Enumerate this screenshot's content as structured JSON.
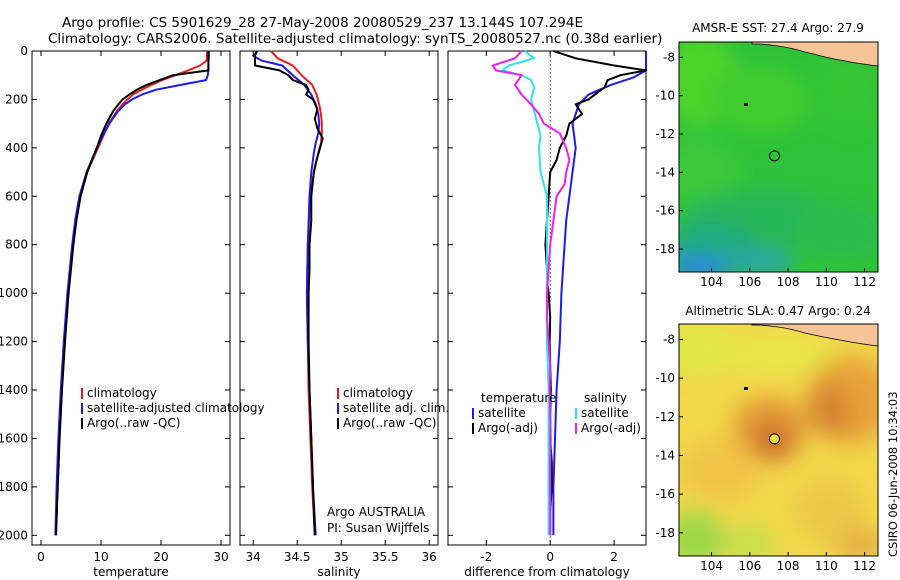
{
  "header": {
    "line1": "Argo profile: CS 5901629_28 27-May-2008 20080529_237 13.144S 107.294E",
    "line2": "Climatology: CARS2006. Satellite-adjusted climatology: synTS_20080527.nc (0.38d earlier)"
  },
  "side_label": "CSIRO 06-Jun-2008 10:34:03",
  "colors": {
    "climatology": "#ee1c1c",
    "satellite": "#1c1cee",
    "argo": "#000000",
    "temp_diff_argo": "#30e0f0",
    "sal_diff_argo": "#ee20ee",
    "land": "#f6c497"
  },
  "chart_data": [
    {
      "type": "line",
      "id": "temperature",
      "xlabel": "temperature",
      "ylabel": "",
      "xlim": [
        -1.5,
        31.5
      ],
      "ylim": [
        2040,
        0
      ],
      "xticks": [
        0,
        10,
        20,
        30
      ],
      "yticks": [
        0,
        200,
        400,
        600,
        800,
        1000,
        1200,
        1400,
        1600,
        1800,
        2000
      ],
      "legend": [
        "climatology",
        "satellite-adjusted climatology",
        "Argo(..raw -QC)"
      ],
      "legend_placement": "lower-center",
      "series": [
        {
          "name": "climatology",
          "color": "#ee1c1c",
          "depth": [
            0,
            40,
            60,
            80,
            100,
            120,
            140,
            160,
            180,
            200,
            220,
            250,
            300,
            350,
            400,
            500,
            600,
            700,
            800,
            1000,
            1200,
            1400,
            1600,
            1800,
            2000
          ],
          "values": [
            27.7,
            27.6,
            26.5,
            24.5,
            22.4,
            20.2,
            18.4,
            16.8,
            15.3,
            14.4,
            13.6,
            12.6,
            11.3,
            10.4,
            9.5,
            7.7,
            6.5,
            5.8,
            5.3,
            4.5,
            3.9,
            3.4,
            3.0,
            2.7,
            2.5
          ]
        },
        {
          "name": "satellite-adjusted climatology",
          "color": "#1c1cee",
          "depth": [
            0,
            60,
            80,
            100,
            120,
            140,
            160,
            180,
            200,
            220,
            250,
            300,
            350,
            400,
            500,
            600,
            700,
            800,
            1000,
            1200,
            1400,
            1600,
            1800,
            2000
          ],
          "values": [
            28.0,
            27.9,
            27.9,
            27.8,
            27.5,
            23.3,
            19.2,
            16.8,
            15.2,
            14.0,
            12.8,
            11.4,
            10.3,
            9.3,
            7.6,
            6.4,
            5.7,
            5.2,
            4.4,
            3.8,
            3.3,
            2.9,
            2.6,
            2.4
          ]
        },
        {
          "name": "Argo(..raw -QC)",
          "color": "#000000",
          "depth": [
            0,
            80,
            90,
            100,
            120,
            140,
            160,
            180,
            200,
            220,
            250,
            300,
            350,
            400,
            500,
            600,
            700,
            800,
            1000,
            1200,
            1400,
            1600,
            1800,
            2000
          ],
          "values": [
            27.9,
            27.9,
            25.0,
            22.0,
            19.8,
            17.6,
            16.0,
            14.7,
            13.6,
            12.9,
            12.0,
            10.9,
            10.0,
            9.3,
            7.7,
            6.6,
            5.9,
            5.4,
            4.6,
            4.0,
            3.5,
            3.1,
            2.8,
            2.5
          ]
        }
      ]
    },
    {
      "type": "line",
      "id": "salinity",
      "xlabel": "salinity",
      "ylabel": "",
      "xlim": [
        33.85,
        36.1
      ],
      "ylim": [
        2040,
        0
      ],
      "xticks": [
        34,
        34.5,
        35,
        35.5,
        36
      ],
      "legend": [
        "climatology",
        "satellite adj. clim.",
        "Argo(..raw -QC)"
      ],
      "legend_placement": "lower-right",
      "annotation": [
        "Argo AUSTRALIA",
        "PI: Susan Wijffels"
      ],
      "series": [
        {
          "name": "climatology",
          "color": "#ee1c1c",
          "depth": [
            0,
            30,
            60,
            100,
            140,
            180,
            220,
            260,
            300,
            340,
            380,
            420,
            500,
            600,
            800,
            1000,
            1200,
            1400,
            1600,
            1800,
            2000
          ],
          "values": [
            34.2,
            34.28,
            34.45,
            34.55,
            34.67,
            34.72,
            34.75,
            34.77,
            34.78,
            34.78,
            34.77,
            34.74,
            34.69,
            34.65,
            34.62,
            34.61,
            34.62,
            34.63,
            34.65,
            34.67,
            34.7
          ]
        },
        {
          "name": "satellite adj. clim.",
          "color": "#1c1cee",
          "depth": [
            0,
            20,
            40,
            60,
            100,
            140,
            180,
            220,
            260,
            300,
            340,
            380,
            420,
            500,
            600,
            800,
            1000,
            1200,
            1400,
            1600,
            1800,
            2000
          ],
          "values": [
            34.05,
            34.0,
            34.1,
            34.33,
            34.45,
            34.58,
            34.66,
            34.71,
            34.74,
            34.75,
            34.74,
            34.71,
            34.69,
            34.66,
            34.64,
            34.62,
            34.61,
            34.62,
            34.64,
            34.66,
            34.68,
            34.71
          ]
        },
        {
          "name": "Argo(..raw -QC)",
          "color": "#000000",
          "depth": [
            0,
            20,
            40,
            60,
            80,
            100,
            120,
            140,
            160,
            180,
            200,
            240,
            280,
            320,
            360,
            400,
            450,
            500,
            600,
            700,
            800,
            900,
            1000,
            1200,
            1400,
            1600,
            1800,
            2000
          ],
          "values": [
            34.04,
            34.02,
            34.02,
            34.02,
            34.3,
            34.4,
            34.45,
            34.6,
            34.63,
            34.6,
            34.68,
            34.73,
            34.7,
            34.73,
            34.79,
            34.76,
            34.72,
            34.69,
            34.66,
            34.66,
            34.64,
            34.64,
            34.63,
            34.63,
            34.64,
            34.66,
            34.68,
            34.7
          ]
        }
      ]
    },
    {
      "type": "line",
      "id": "difference",
      "xlabel": "difference from climatology",
      "ylabel": "",
      "xlim": [
        -3.2,
        3.0
      ],
      "ylim": [
        2040,
        0
      ],
      "xticks": [
        -2,
        0,
        2
      ],
      "legend": [
        "temperature",
        "satellite",
        "Argo(-adj)",
        "salinity",
        "satellite",
        "Argo(-adj)"
      ],
      "legend_placement": "lower-center",
      "series": [
        {
          "name": "temperature satellite",
          "color": "#1c1cee",
          "depth": [
            0,
            50,
            80,
            110,
            140,
            180,
            220,
            300,
            400,
            500,
            600,
            700,
            800,
            900,
            1000,
            1200,
            1400,
            1600,
            1800,
            2000
          ],
          "values": [
            3.2,
            3.2,
            3.0,
            2.6,
            1.9,
            1.2,
            0.9,
            0.7,
            0.8,
            0.7,
            0.6,
            0.5,
            0.45,
            0.4,
            0.35,
            0.3,
            0.2,
            0.15,
            0.1,
            0.1
          ]
        },
        {
          "name": "temperature Argo(-adj)",
          "color": "#000000",
          "depth": [
            0,
            30,
            60,
            80,
            100,
            120,
            150,
            180,
            200,
            220,
            260,
            300,
            350,
            400,
            450,
            500,
            600,
            700,
            800,
            900,
            950,
            1000,
            1100,
            1200,
            1300,
            1400,
            1500,
            1600,
            1700,
            1800,
            1900,
            2000
          ],
          "values": [
            0.1,
            0.8,
            2.0,
            3.0,
            2.2,
            1.8,
            1.7,
            1.4,
            1.2,
            0.8,
            1.0,
            0.6,
            0.5,
            0.3,
            0.2,
            0.0,
            -0.05,
            -0.1,
            -0.15,
            -0.1,
            -0.1,
            -0.05,
            0.0,
            -0.02,
            0.0,
            0.02,
            0.0,
            0.0,
            0.05,
            0.05,
            0.0,
            0.0
          ]
        },
        {
          "name": "salinity satellite",
          "color": "#30e0f0",
          "depth": [
            0,
            30,
            60,
            80,
            100,
            120,
            150,
            200,
            250,
            300,
            350,
            400,
            500,
            600,
            700,
            800,
            1000,
            1200,
            1400,
            1600,
            1800,
            2000
          ],
          "values": [
            -0.8,
            -0.5,
            -1.3,
            -1.5,
            -0.9,
            -0.6,
            -0.5,
            -0.6,
            -0.5,
            -0.4,
            -0.3,
            -0.35,
            -0.3,
            -0.1,
            -0.1,
            -0.1,
            -0.1,
            -0.1,
            -0.05,
            -0.05,
            -0.05,
            -0.05
          ]
        },
        {
          "name": "salinity Argo(-adj)",
          "color": "#ee20ee",
          "depth": [
            0,
            30,
            60,
            80,
            100,
            140,
            180,
            220,
            260,
            300,
            340,
            400,
            450,
            500,
            550,
            600,
            700,
            800,
            900,
            1000,
            1100,
            1200,
            1300,
            1400,
            1500,
            1600,
            1700,
            1800,
            1900,
            2000
          ],
          "values": [
            -0.9,
            -1.1,
            -1.8,
            -1.7,
            -0.9,
            -1.1,
            -0.9,
            -0.6,
            -0.35,
            -0.2,
            0.3,
            0.5,
            0.6,
            0.5,
            0.45,
            0.2,
            0.1,
            0.0,
            -0.05,
            -0.1,
            -0.1,
            -0.05,
            0.0,
            -0.02,
            0.0,
            0.02,
            0.0,
            0.0,
            0.0,
            0.0
          ]
        }
      ]
    },
    {
      "type": "heatmap",
      "id": "sst_map",
      "title": "AMSR-E SST: 27.4 Argo: 27.9",
      "xlim": [
        102.3,
        112.7
      ],
      "ylim": [
        -19.2,
        -7.2
      ],
      "xticks": [
        104,
        106,
        108,
        110,
        112
      ],
      "yticks": [
        -8,
        -10,
        -12,
        -14,
        -16,
        -18
      ],
      "argo_marker": {
        "lon": 107.29,
        "lat": -13.14
      }
    },
    {
      "type": "heatmap",
      "id": "sla_map",
      "title": "Altimetric SLA: 0.47 Argo: 0.24",
      "xlim": [
        102.3,
        112.7
      ],
      "ylim": [
        -19.2,
        -7.2
      ],
      "xticks": [
        104,
        106,
        108,
        110,
        112
      ],
      "yticks": [
        -8,
        -10,
        -12,
        -14,
        -16,
        -18
      ],
      "argo_marker": {
        "lon": 107.29,
        "lat": -13.14
      }
    }
  ]
}
